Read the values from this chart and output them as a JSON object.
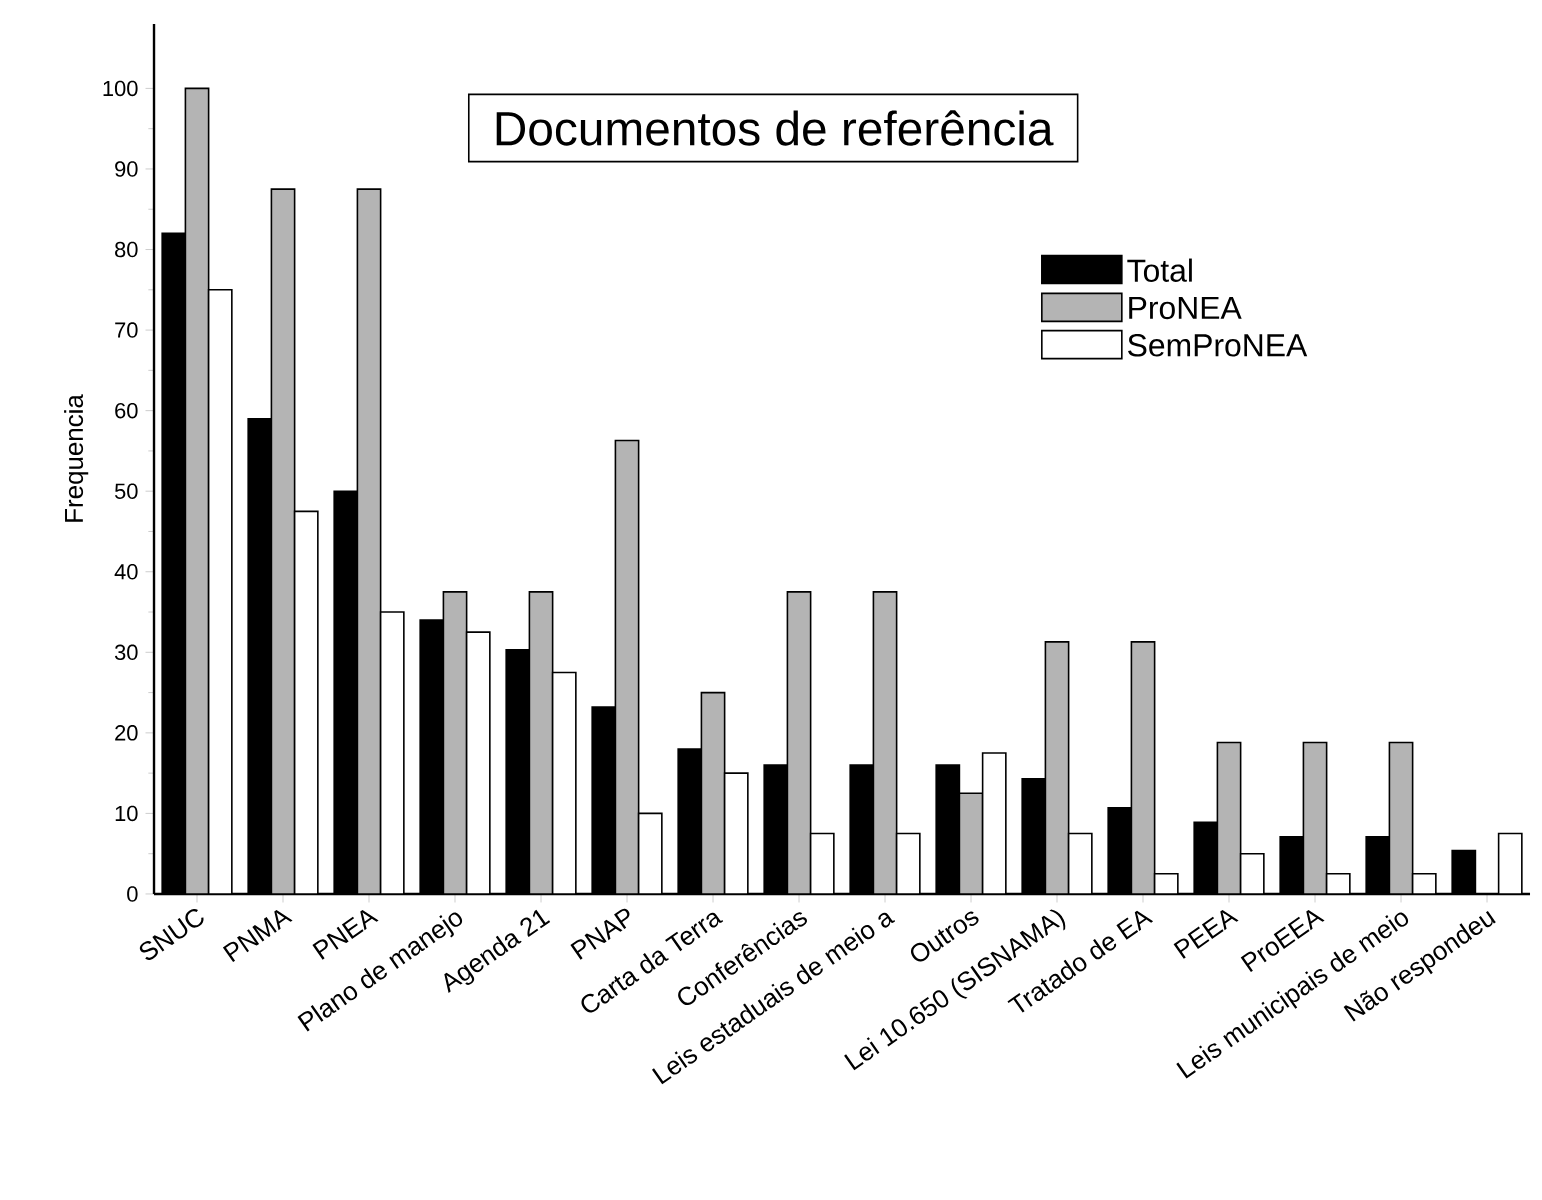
{
  "chart_data": {
    "type": "bar",
    "title": "Documentos de referência",
    "ylabel": "Frequencia",
    "categories": [
      "SNUC",
      "PNMA",
      "PNEA",
      "Plano de manejo",
      "Agenda 21",
      "PNAP",
      "Carta da Terra",
      "Conferências",
      "Leis estaduais de meio a",
      "Outros",
      "Lei 10.650 (SISNAMA)",
      "Tratado de EA",
      "PEEA",
      "ProEEA",
      "Leis municipais de meio",
      "Não respondeu"
    ],
    "series": [
      {
        "name": "Total",
        "color": "#000000",
        "values": [
          82,
          59,
          50,
          34,
          30.3,
          23.2,
          18,
          16,
          16,
          16,
          14.3,
          10.7,
          8.9,
          7.1,
          7.1,
          5.4
        ]
      },
      {
        "name": "ProNEA",
        "color": "#b4b4b4",
        "values": [
          100,
          87.5,
          87.5,
          37.5,
          37.5,
          56.3,
          25,
          37.5,
          37.5,
          12.5,
          31.3,
          31.3,
          18.8,
          18.8,
          18.8,
          null
        ]
      },
      {
        "name": "SemProNEA",
        "color": "#ffffff",
        "values": [
          75,
          47.5,
          35,
          32.5,
          27.5,
          10,
          15,
          7.5,
          7.5,
          17.5,
          7.5,
          2.5,
          5,
          2.5,
          2.5,
          7.5
        ]
      }
    ],
    "ylim": [
      0,
      108
    ],
    "yticks": [
      0,
      10,
      20,
      30,
      40,
      50,
      60,
      70,
      80,
      90,
      100
    ],
    "legend": "top right"
  }
}
